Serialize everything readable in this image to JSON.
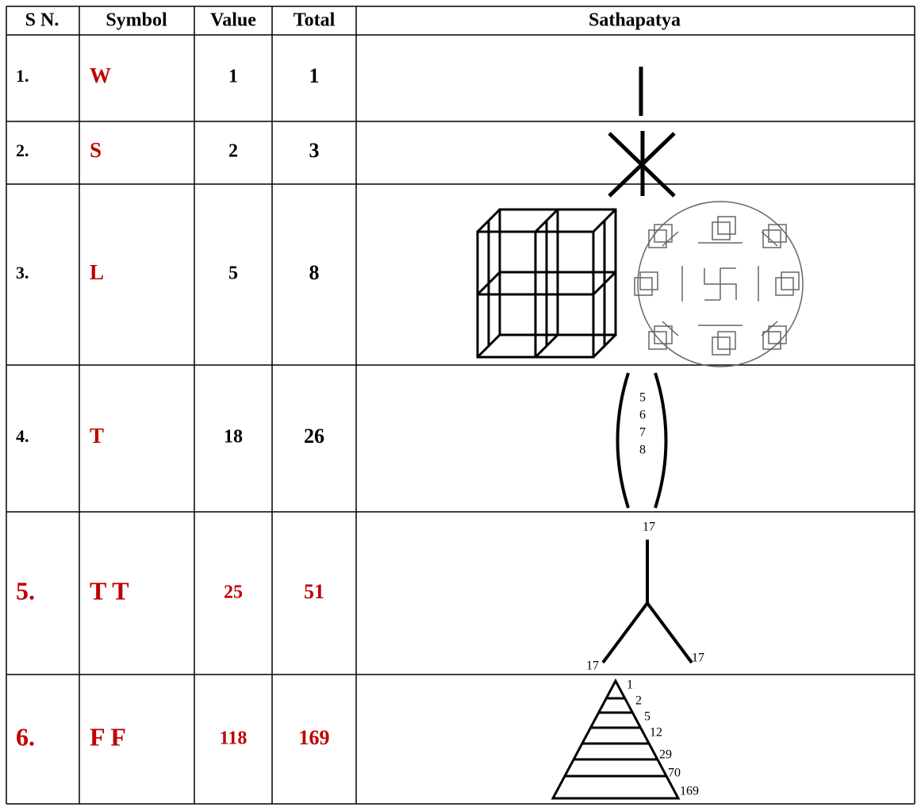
{
  "table": {
    "header": [
      "S N.",
      "Symbol",
      "Value",
      "Total",
      "Sathapatya"
    ],
    "rows": [
      [
        "1.",
        "W",
        "1",
        "1"
      ],
      [
        "2.",
        "S",
        "2",
        "3"
      ],
      [
        "3.",
        "L",
        "5",
        "8"
      ],
      [
        "4.",
        "T",
        "18",
        "26"
      ],
      [
        "5.",
        "T T",
        "25",
        "51"
      ],
      [
        "6.",
        "F F",
        "118",
        "169"
      ]
    ]
  },
  "figures": {
    "row4_numbers": [
      "5",
      "6",
      "7",
      "8"
    ],
    "row5_labels": [
      "17",
      "17",
      "17"
    ],
    "row6_labels": [
      "1",
      "2",
      "5",
      "12",
      "29",
      "70",
      "169"
    ]
  }
}
